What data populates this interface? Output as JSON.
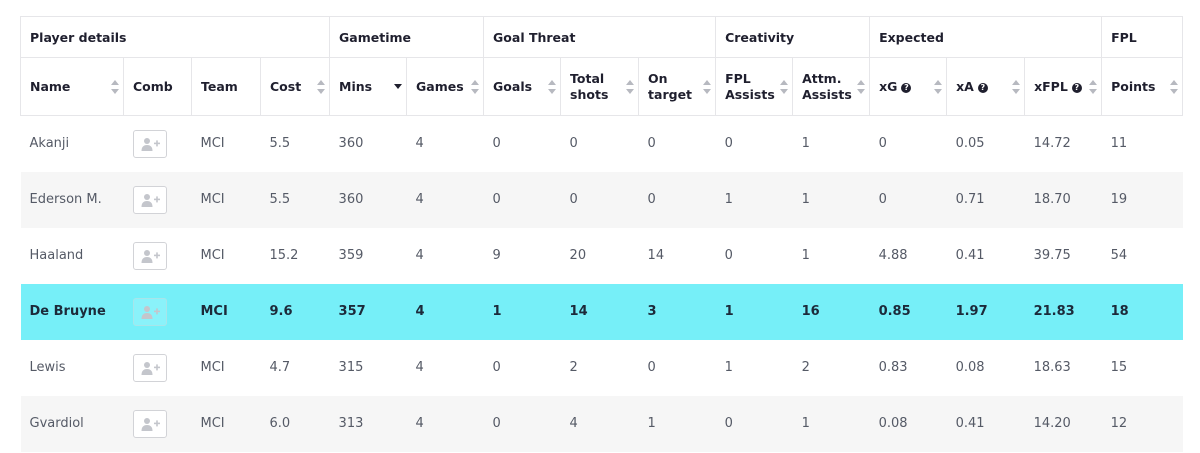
{
  "group_headers": [
    {
      "label": "Player details"
    },
    {
      "label": "Gametime"
    },
    {
      "label": "Goal Threat"
    },
    {
      "label": "Creativity"
    },
    {
      "label": "Expected"
    },
    {
      "label": "FPL"
    }
  ],
  "columns": {
    "name": {
      "line1": "Name",
      "line2": ""
    },
    "comb": {
      "line1": "Comb",
      "line2": ""
    },
    "team": {
      "line1": "Team",
      "line2": ""
    },
    "cost": {
      "line1": "Cost",
      "line2": ""
    },
    "mins": {
      "line1": "Mins",
      "line2": ""
    },
    "games": {
      "line1": "Games",
      "line2": ""
    },
    "goals": {
      "line1": "Goals",
      "line2": ""
    },
    "total_shots": {
      "line1": "Total",
      "line2": "shots"
    },
    "on_target": {
      "line1": "On",
      "line2": "target"
    },
    "fpl_assists": {
      "line1": "FPL",
      "line2": "Assists"
    },
    "attm_assists": {
      "line1": "Attm.",
      "line2": "Assists"
    },
    "xg": {
      "line1": "xG",
      "line2": ""
    },
    "xa": {
      "line1": "xA",
      "line2": ""
    },
    "xfpl": {
      "line1": "xFPL",
      "line2": ""
    },
    "points": {
      "line1": "Points",
      "line2": ""
    }
  },
  "help_icon": {
    "glyph": "?",
    "icon": "question-circle-icon"
  },
  "sort": {
    "active_column": "mins",
    "direction": "descending"
  },
  "add_icon": "add-user-icon",
  "highlight_color": "#76eff8",
  "rows": [
    {
      "name": "Akanji",
      "team": "MCI",
      "cost": "5.5",
      "mins": "360",
      "games": "4",
      "goals": "0",
      "total_shots": "0",
      "on_target": "0",
      "fpl_assists": "0",
      "attm_assists": "1",
      "xg": "0",
      "xa": "0.05",
      "xfpl": "14.72",
      "points": "11"
    },
    {
      "name": "Ederson M.",
      "team": "MCI",
      "cost": "5.5",
      "mins": "360",
      "games": "4",
      "goals": "0",
      "total_shots": "0",
      "on_target": "0",
      "fpl_assists": "1",
      "attm_assists": "1",
      "xg": "0",
      "xa": "0.71",
      "xfpl": "18.70",
      "points": "19"
    },
    {
      "name": "Haaland",
      "team": "MCI",
      "cost": "15.2",
      "mins": "359",
      "games": "4",
      "goals": "9",
      "total_shots": "20",
      "on_target": "14",
      "fpl_assists": "0",
      "attm_assists": "1",
      "xg": "4.88",
      "xa": "0.41",
      "xfpl": "39.75",
      "points": "54"
    },
    {
      "name": "De Bruyne",
      "team": "MCI",
      "cost": "9.6",
      "mins": "357",
      "games": "4",
      "goals": "1",
      "total_shots": "14",
      "on_target": "3",
      "fpl_assists": "1",
      "attm_assists": "16",
      "xg": "0.85",
      "xa": "1.97",
      "xfpl": "21.83",
      "points": "18",
      "highlighted": true
    },
    {
      "name": "Lewis",
      "team": "MCI",
      "cost": "4.7",
      "mins": "315",
      "games": "4",
      "goals": "0",
      "total_shots": "2",
      "on_target": "0",
      "fpl_assists": "1",
      "attm_assists": "2",
      "xg": "0.83",
      "xa": "0.08",
      "xfpl": "18.63",
      "points": "15"
    },
    {
      "name": "Gvardiol",
      "team": "MCI",
      "cost": "6.0",
      "mins": "313",
      "games": "4",
      "goals": "0",
      "total_shots": "4",
      "on_target": "1",
      "fpl_assists": "0",
      "attm_assists": "1",
      "xg": "0.08",
      "xa": "0.41",
      "xfpl": "14.20",
      "points": "12"
    }
  ]
}
